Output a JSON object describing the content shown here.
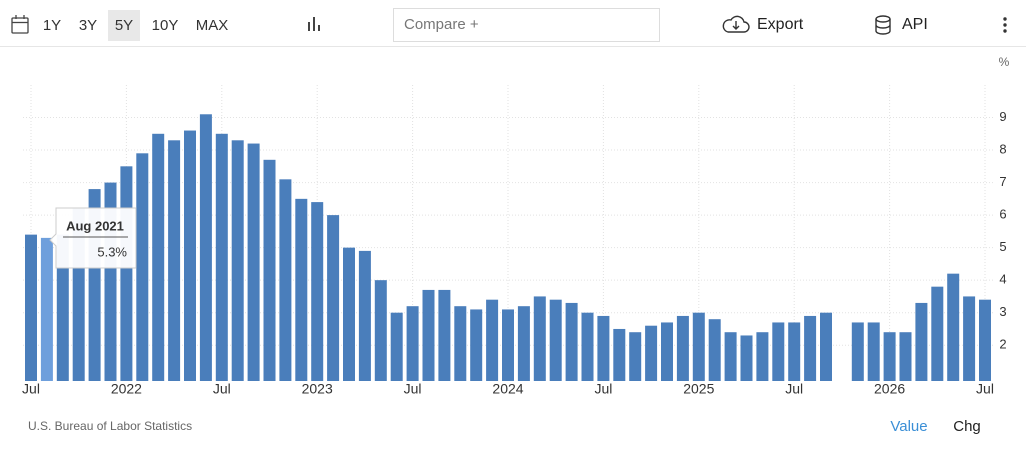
{
  "toolbar": {
    "ranges": [
      "1Y",
      "3Y",
      "5Y",
      "10Y",
      "MAX"
    ],
    "active_range": "5Y",
    "compare": "Compare +",
    "export": "Export",
    "api": "API"
  },
  "chart_data": {
    "type": "bar",
    "unit": "%",
    "categories": [
      "Jul",
      null,
      null,
      null,
      null,
      null,
      "2022",
      null,
      null,
      null,
      null,
      null,
      "Jul",
      null,
      null,
      null,
      null,
      null,
      "2023",
      null,
      null,
      null,
      null,
      null,
      "Jul",
      null,
      null,
      null,
      null,
      null,
      "2024",
      null,
      null,
      null,
      null,
      null,
      "Jul",
      null,
      null,
      null,
      null,
      null,
      "2025",
      null,
      null,
      null,
      null,
      null,
      "Jul",
      null,
      null,
      null,
      null,
      null,
      "2026",
      null,
      null,
      null,
      null,
      null,
      "Jul"
    ],
    "values": [
      5.4,
      5.3,
      5.4,
      6.2,
      6.8,
      7.0,
      7.5,
      7.9,
      8.5,
      8.3,
      8.6,
      9.1,
      8.5,
      8.3,
      8.2,
      7.7,
      7.1,
      6.5,
      6.4,
      6.0,
      5.0,
      4.9,
      4.0,
      3.0,
      3.2,
      3.7,
      3.7,
      3.2,
      3.1,
      3.4,
      3.1,
      3.2,
      3.5,
      3.4,
      3.3,
      3.0,
      2.9,
      2.5,
      2.4,
      2.6,
      2.7,
      2.9,
      3.0,
      2.8,
      2.4,
      2.3,
      2.4,
      2.7,
      2.7,
      2.9,
      3.0,
      null,
      2.7,
      2.7,
      2.4,
      2.4,
      3.3,
      3.8,
      4.2,
      3.5,
      3.4
    ],
    "color": "#4a7ebb",
    "hover_color": "#6e9fdc",
    "ylim": [
      0.9,
      10
    ],
    "yticks": [
      2,
      3,
      4,
      5,
      6,
      7,
      8,
      9
    ],
    "grid": true,
    "tooltip": {
      "index": 1,
      "title": "Aug 2021",
      "value": "5.3%"
    }
  },
  "footer": {
    "source": "U.S. Bureau of Labor Statistics",
    "tabs": [
      "Value",
      "Chg"
    ],
    "active_tab": "Value"
  }
}
